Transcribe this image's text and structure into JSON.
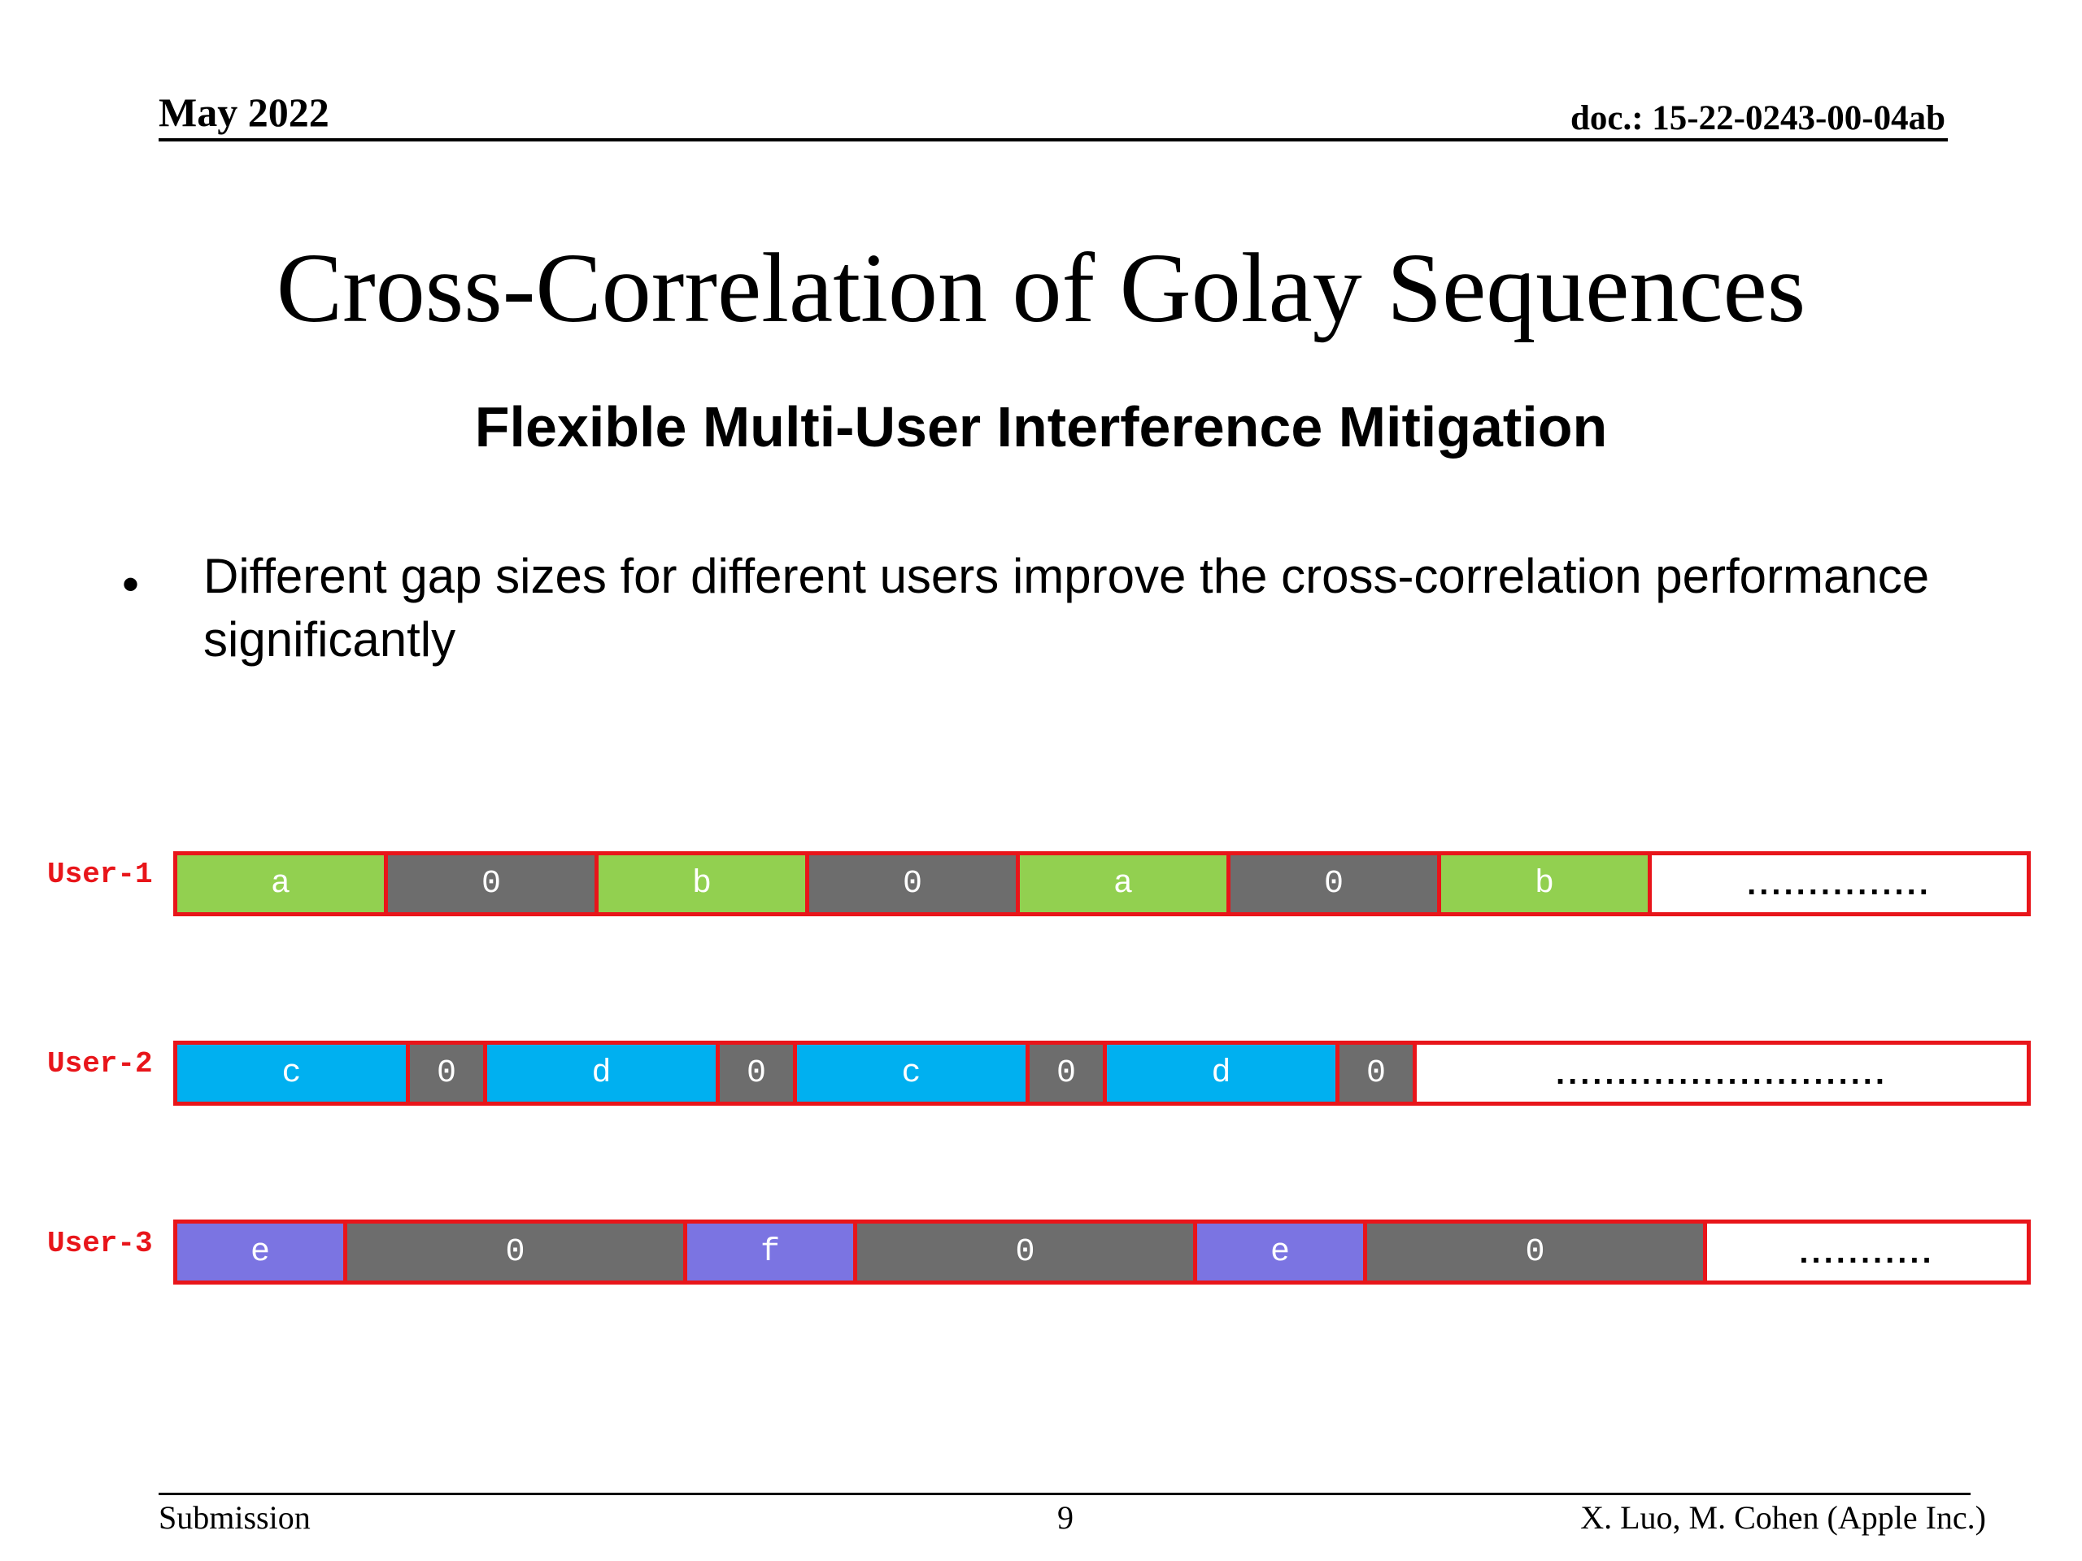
{
  "header": {
    "date": "May 2022",
    "doc": "doc.: 15-22-0243-00-04ab"
  },
  "title": "Cross-Correlation of Golay Sequences",
  "subtitle": "Flexible Multi-User Interference Mitigation",
  "bullet": {
    "symbol": "•",
    "text": "Different gap sizes for different users improve the cross-correlation performance significantly"
  },
  "colors": {
    "border": "#e8151a",
    "gap": "#6d6d6d",
    "user1": "#92d050",
    "user2": "#00b0f0",
    "user3": "#7b74e2"
  },
  "users": [
    {
      "label": "User-1",
      "segments": [
        {
          "text": "a",
          "kind": "data",
          "units": 3
        },
        {
          "text": "0",
          "kind": "gap",
          "units": 3
        },
        {
          "text": "b",
          "kind": "data",
          "units": 3
        },
        {
          "text": "0",
          "kind": "gap",
          "units": 3
        },
        {
          "text": "a",
          "kind": "data",
          "units": 3
        },
        {
          "text": "0",
          "kind": "gap",
          "units": 3
        },
        {
          "text": "b",
          "kind": "data",
          "units": 3
        }
      ],
      "tail": "..............."
    },
    {
      "label": "User-2",
      "segments": [
        {
          "text": "c",
          "kind": "data",
          "units": 3
        },
        {
          "text": "0",
          "kind": "gap",
          "units": 1
        },
        {
          "text": "d",
          "kind": "data",
          "units": 3
        },
        {
          "text": "0",
          "kind": "gap",
          "units": 1
        },
        {
          "text": "c",
          "kind": "data",
          "units": 3
        },
        {
          "text": "0",
          "kind": "gap",
          "units": 1
        },
        {
          "text": "d",
          "kind": "data",
          "units": 3
        },
        {
          "text": "0",
          "kind": "gap",
          "units": 1
        }
      ],
      "tail": "..........................."
    },
    {
      "label": "User-3",
      "segments": [
        {
          "text": "e",
          "kind": "data",
          "units": 1
        },
        {
          "text": "0",
          "kind": "gap",
          "units": 2
        },
        {
          "text": "f",
          "kind": "data",
          "units": 1
        },
        {
          "text": "0",
          "kind": "gap",
          "units": 2
        },
        {
          "text": "e",
          "kind": "data",
          "units": 1
        },
        {
          "text": "0",
          "kind": "gap",
          "units": 2
        }
      ],
      "tail": "..........."
    }
  ],
  "footer": {
    "left": "Submission",
    "page": "9",
    "right": "X. Luo, M. Cohen (Apple Inc.)"
  }
}
